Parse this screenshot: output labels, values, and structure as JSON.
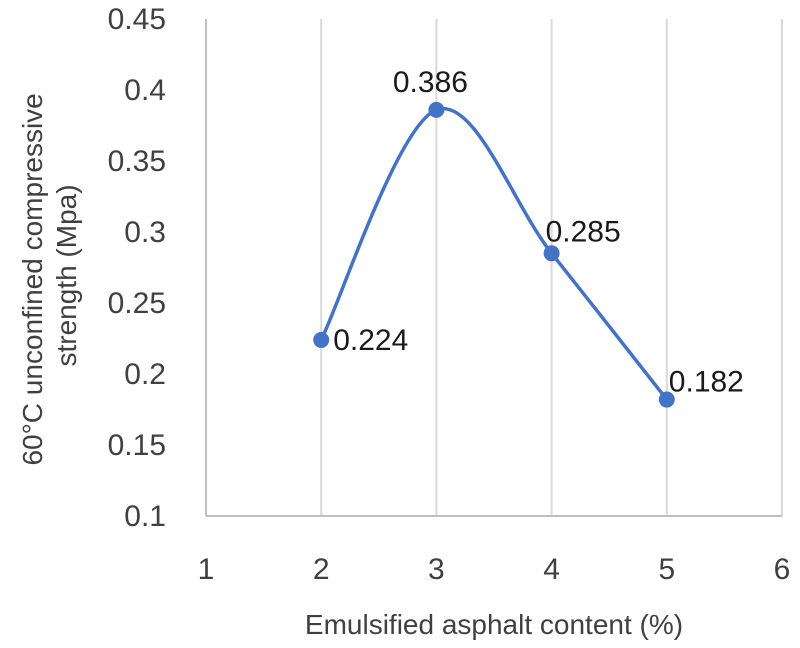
{
  "chart_data": {
    "type": "scatter",
    "title": "",
    "xlabel": "Emulsified asphalt content (%)",
    "ylabel_lines": [
      "60°C unconfined compressive",
      "strength (Mpa)"
    ],
    "xlim": [
      1,
      6
    ],
    "ylim": [
      0.1,
      0.45
    ],
    "x_ticks": [
      1,
      2,
      3,
      4,
      5,
      6
    ],
    "x_tick_labels": [
      "1",
      "2",
      "3",
      "4",
      "5",
      "6"
    ],
    "y_ticks": [
      0.1,
      0.15,
      0.2,
      0.25,
      0.3,
      0.35,
      0.4,
      0.45
    ],
    "y_tick_labels": [
      "0.1",
      "0.15",
      "0.2",
      "0.25",
      "0.3",
      "0.35",
      "0.4",
      "0.45"
    ],
    "grid": "vertical",
    "smooth_line": true,
    "series": [
      {
        "x": [
          2,
          3,
          4,
          5
        ],
        "y": [
          0.224,
          0.386,
          0.285,
          0.182
        ],
        "labels": [
          "0.224",
          "0.386",
          "0.285",
          "0.182"
        ],
        "color": "#4472c4"
      }
    ]
  }
}
